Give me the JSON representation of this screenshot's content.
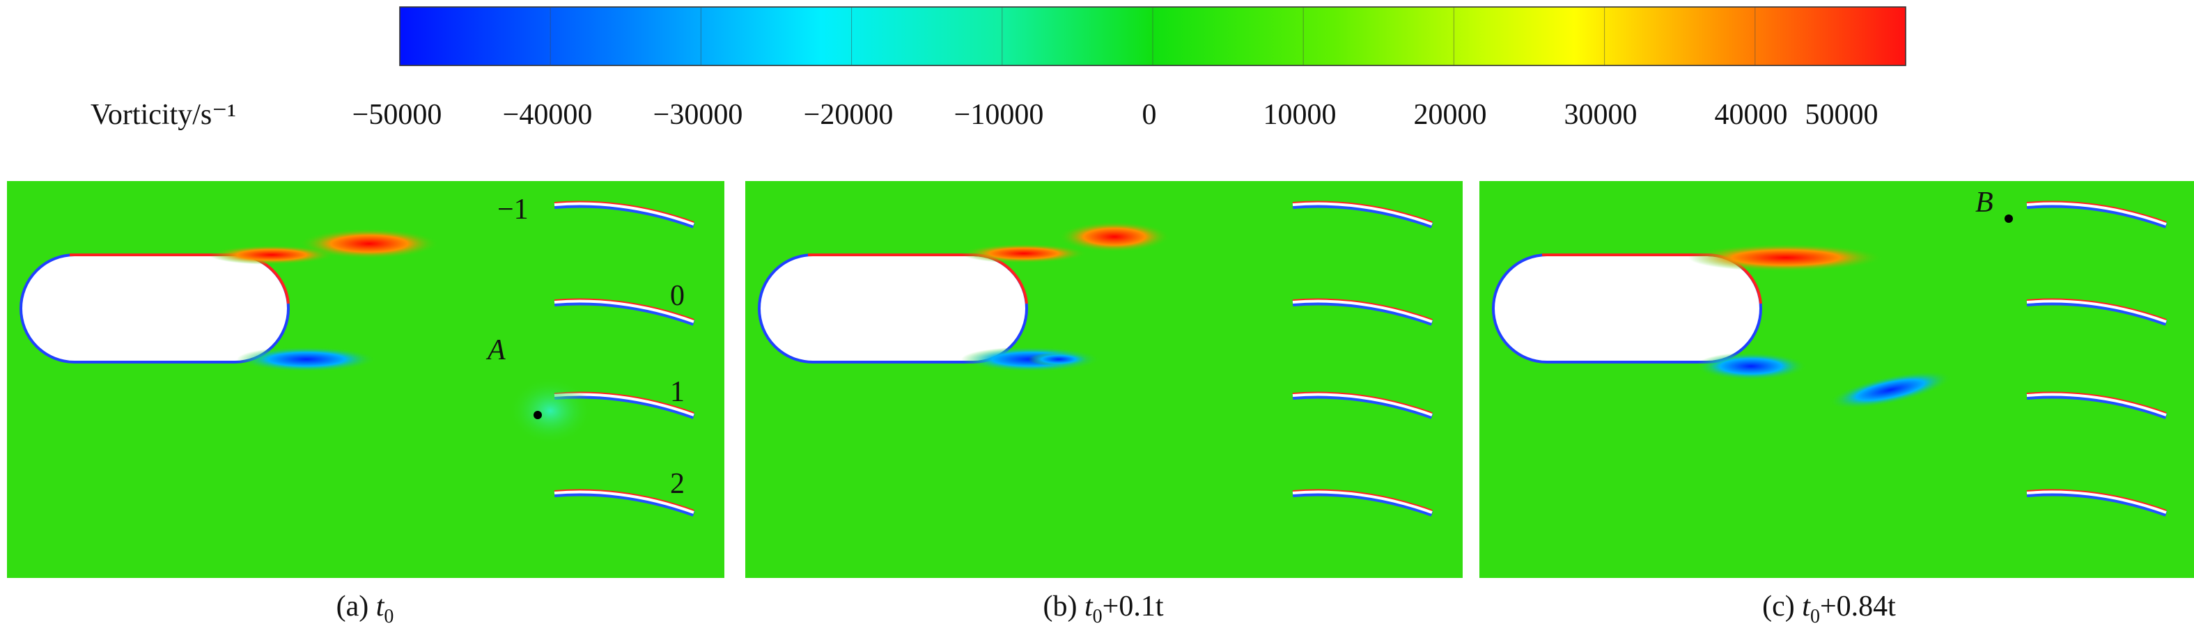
{
  "colorbar": {
    "label": "Vorticity/s⁻¹",
    "ticks": [
      "−50000",
      "−40000",
      "−30000",
      "−20000",
      "−10000",
      "0",
      "10000",
      "20000",
      "30000",
      "40000",
      "50000"
    ]
  },
  "panels": [
    {
      "label": "(a)",
      "var": "t",
      "sub": "0",
      "blades": [
        "−1",
        "0",
        "1",
        "2"
      ],
      "point": "A"
    },
    {
      "label": "(b)",
      "var": "t",
      "sub": "0",
      "rest": "+0.1t"
    },
    {
      "label": "(c)",
      "var": "t",
      "sub": "0",
      "rest": "+0.84t",
      "point": "B"
    }
  ]
}
